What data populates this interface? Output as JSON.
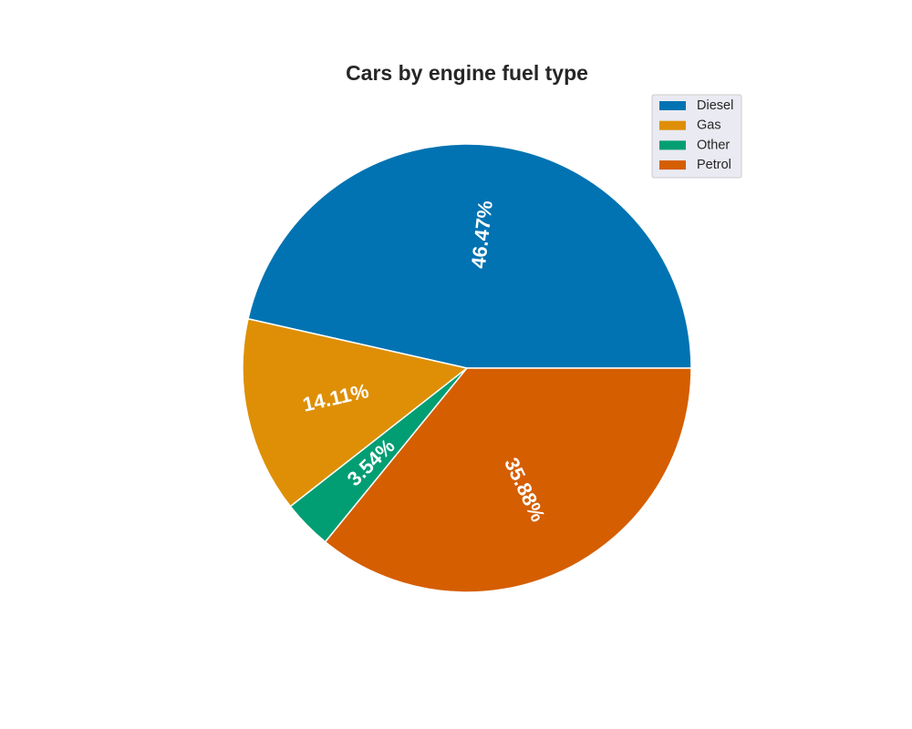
{
  "chart_data": {
    "type": "pie",
    "title": "Cars by engine fuel type",
    "categories": [
      "Diesel",
      "Gas",
      "Other",
      "Petrol"
    ],
    "values": [
      46.47,
      14.11,
      3.54,
      35.88
    ],
    "labels": [
      "46.47%",
      "14.11%",
      "3.54%",
      "35.88%"
    ],
    "colors": [
      "#0173b2",
      "#de8f05",
      "#029e73",
      "#d55e00"
    ],
    "start_angle_deg": 0,
    "direction": "counterclockwise",
    "legend": "top-right"
  }
}
